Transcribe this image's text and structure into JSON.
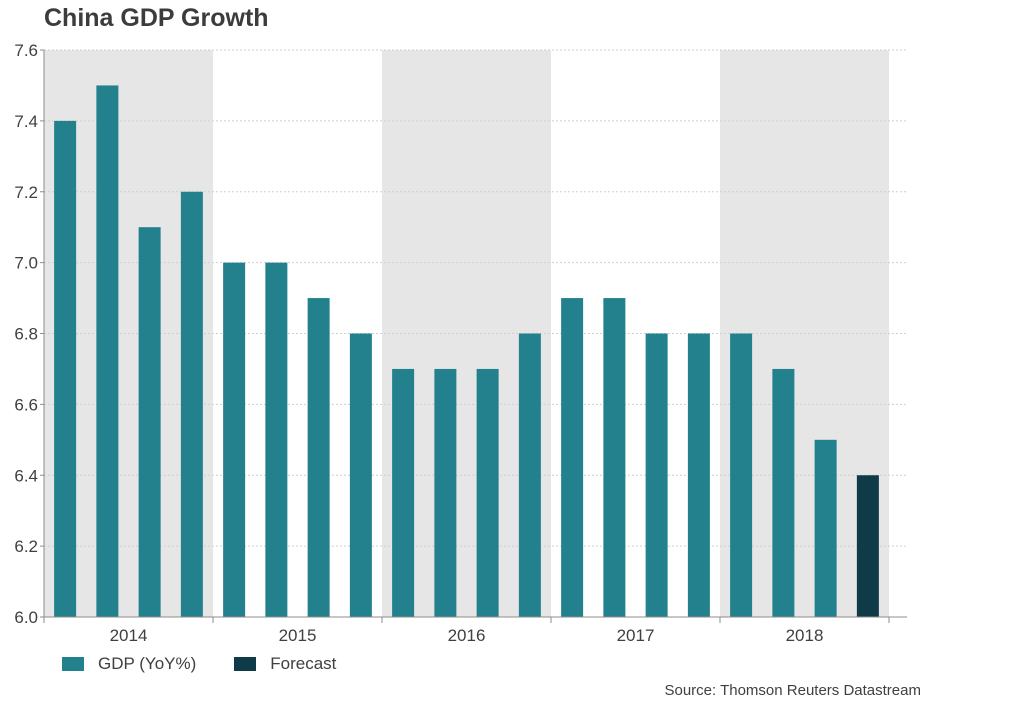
{
  "chart_data": {
    "type": "bar",
    "title": "China GDP Growth",
    "xlabel": "",
    "ylabel": "",
    "ylim": [
      6.0,
      7.6
    ],
    "y_ticks": [
      "6.0",
      "6.2",
      "6.4",
      "6.6",
      "6.8",
      "7.0",
      "7.2",
      "7.4",
      "7.6"
    ],
    "grid": true,
    "year_groups": [
      "2014",
      "2015",
      "2016",
      "2017",
      "2018"
    ],
    "categories": [
      "2014 Q1",
      "2014 Q2",
      "2014 Q3",
      "2014 Q4",
      "2015 Q1",
      "2015 Q2",
      "2015 Q3",
      "2015 Q4",
      "2016 Q1",
      "2016 Q2",
      "2016 Q3",
      "2016 Q4",
      "2017 Q1",
      "2017 Q2",
      "2017 Q3",
      "2017 Q4",
      "2018 Q1",
      "2018 Q2",
      "2018 Q3",
      "2018 Q4"
    ],
    "series": [
      {
        "name": "GDP (YoY%)",
        "color": "#23818e",
        "values": [
          7.4,
          7.5,
          7.1,
          7.2,
          7.0,
          7.0,
          6.9,
          6.8,
          6.7,
          6.7,
          6.7,
          6.8,
          6.9,
          6.9,
          6.8,
          6.8,
          6.8,
          6.7,
          6.5,
          null
        ]
      },
      {
        "name": "Forecast",
        "color": "#0f3a47",
        "values": [
          null,
          null,
          null,
          null,
          null,
          null,
          null,
          null,
          null,
          null,
          null,
          null,
          null,
          null,
          null,
          null,
          null,
          null,
          null,
          6.4
        ]
      }
    ],
    "band_color": "#e6e6e6",
    "legend_position": "bottom-left"
  },
  "source": "Source: Thomson Reuters Datastream"
}
